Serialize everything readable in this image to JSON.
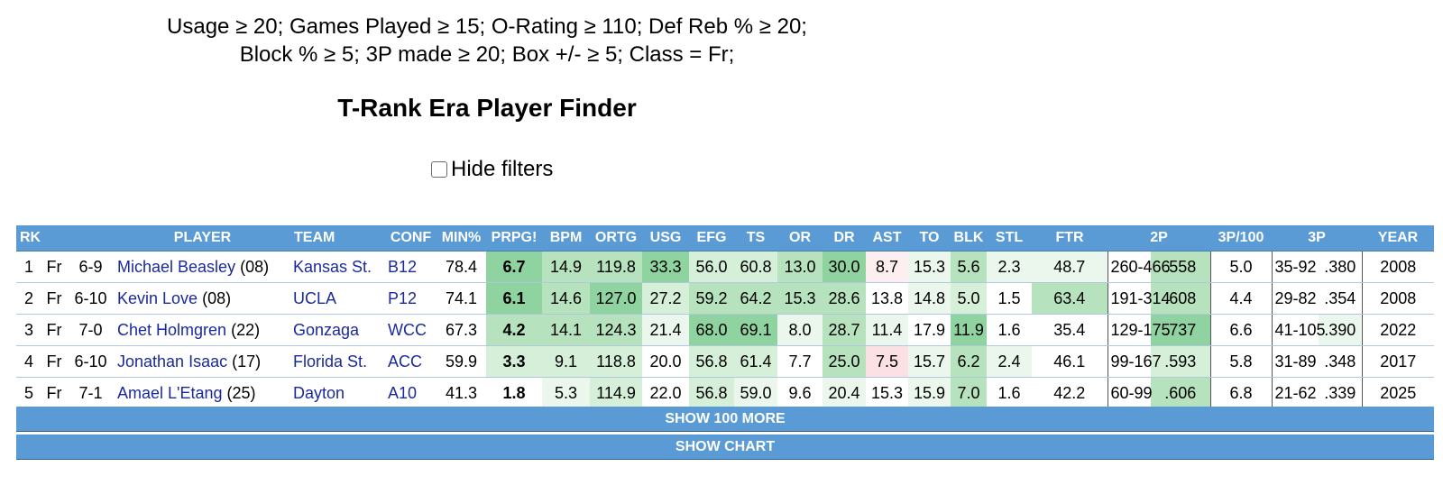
{
  "filters": {
    "line1": "Usage ≥ 20; Games Played ≥ 15; O-Rating ≥ 110; Def Reb % ≥ 20;",
    "line2": "Block % ≥ 5; 3P made ≥ 20; Box +/- ≥ 5; Class = Fr;"
  },
  "title": "T-Rank Era Player Finder",
  "hide_filters_label": "Hide filters",
  "columns": {
    "rk": "RK",
    "player": "PLAYER",
    "team": "TEAM",
    "conf": "CONF",
    "min": "MIN%",
    "prpg": "PRPG!",
    "bpm": "BPM",
    "ortg": "ORTG",
    "usg": "USG",
    "efg": "EFG",
    "ts": "TS",
    "or": "OR",
    "dr": "DR",
    "ast": "AST",
    "to": "TO",
    "blk": "BLK",
    "stl": "STL",
    "ftr": "FTR",
    "two_p": "2P",
    "three_per100": "3P/100",
    "three_p": "3P",
    "year": "YEAR"
  },
  "rows": [
    {
      "rk": "1",
      "cls": "Fr",
      "ht": "6-9",
      "name": "Michael Beasley",
      "num": "(08)",
      "team": "Kansas St.",
      "conf": "B12",
      "min": "78.4",
      "prpg": "6.7",
      "bpm": "14.9",
      "ortg": "119.8",
      "usg": "33.3",
      "efg": "56.0",
      "ts": "60.8",
      "or": "13.0",
      "dr": "30.0",
      "ast": "8.7",
      "to": "15.3",
      "blk": "5.6",
      "stl": "2.3",
      "ftr": "48.7",
      "two_p": "260-466",
      "two_pct": ".558",
      "three_per100": "5.0",
      "three_p": "35-92",
      "three_pct": ".380",
      "year": "2008"
    },
    {
      "rk": "2",
      "cls": "Fr",
      "ht": "6-10",
      "name": "Kevin Love",
      "num": "(08)",
      "team": "UCLA",
      "conf": "P12",
      "min": "74.1",
      "prpg": "6.1",
      "bpm": "14.6",
      "ortg": "127.0",
      "usg": "27.2",
      "efg": "59.2",
      "ts": "64.2",
      "or": "15.3",
      "dr": "28.6",
      "ast": "13.8",
      "to": "14.8",
      "blk": "5.0",
      "stl": "1.5",
      "ftr": "63.4",
      "two_p": "191-314",
      "two_pct": ".608",
      "three_per100": "4.4",
      "three_p": "29-82",
      "three_pct": ".354",
      "year": "2008"
    },
    {
      "rk": "3",
      "cls": "Fr",
      "ht": "7-0",
      "name": "Chet Holmgren",
      "num": "(22)",
      "team": "Gonzaga",
      "conf": "WCC",
      "min": "67.3",
      "prpg": "4.2",
      "bpm": "14.1",
      "ortg": "124.3",
      "usg": "21.4",
      "efg": "68.0",
      "ts": "69.1",
      "or": "8.0",
      "dr": "28.7",
      "ast": "11.4",
      "to": "17.9",
      "blk": "11.9",
      "stl": "1.6",
      "ftr": "35.4",
      "two_p": "129-175",
      "two_pct": ".737",
      "three_per100": "6.6",
      "three_p": "41-105",
      "three_pct": ".390",
      "year": "2022"
    },
    {
      "rk": "4",
      "cls": "Fr",
      "ht": "6-10",
      "name": "Jonathan Isaac",
      "num": "(17)",
      "team": "Florida St.",
      "conf": "ACC",
      "min": "59.9",
      "prpg": "3.3",
      "bpm": "9.1",
      "ortg": "118.8",
      "usg": "20.0",
      "efg": "56.8",
      "ts": "61.4",
      "or": "7.7",
      "dr": "25.0",
      "ast": "7.5",
      "to": "15.7",
      "blk": "6.2",
      "stl": "2.4",
      "ftr": "46.1",
      "two_p": "99-167",
      "two_pct": ".593",
      "three_per100": "5.8",
      "three_p": "31-89",
      "three_pct": ".348",
      "year": "2017"
    },
    {
      "rk": "5",
      "cls": "Fr",
      "ht": "7-1",
      "name": "Amael L'Etang",
      "num": "(25)",
      "team": "Dayton",
      "conf": "A10",
      "min": "41.3",
      "prpg": "1.8",
      "bpm": "5.3",
      "ortg": "114.9",
      "usg": "22.0",
      "efg": "56.8",
      "ts": "59.0",
      "or": "9.6",
      "dr": "20.4",
      "ast": "15.3",
      "to": "15.9",
      "blk": "7.0",
      "stl": "1.6",
      "ftr": "42.2",
      "two_p": "60-99",
      "two_pct": ".606",
      "three_per100": "6.8",
      "three_p": "21-62",
      "three_pct": ".339",
      "year": "2025"
    }
  ],
  "colors": {
    "header_bg": "#5b9bd5",
    "link": "#1a2a9c",
    "green_strong": "#8fd3a0",
    "green_mid": "#b6e2bd",
    "green_light": "#d6efd9",
    "green_faint": "#ebf7ed",
    "pink": "#fbe1e3",
    "pink_faint": "#fdeff0"
  },
  "buttons": {
    "more": "SHOW 100 MORE",
    "chart": "SHOW CHART"
  }
}
